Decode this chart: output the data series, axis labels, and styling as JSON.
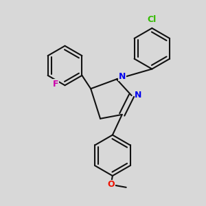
{
  "bg": "#d8d8d8",
  "bond_color": "#111111",
  "N_color": "#0000ee",
  "F_color": "#cc00aa",
  "Cl_color": "#33bb00",
  "O_color": "#ee1100",
  "lw": 1.5,
  "dbo": 0.028,
  "figsize": [
    3.0,
    3.0
  ],
  "dpi": 100,
  "xlim": [
    -1.3,
    1.5
  ],
  "ylim": [
    -1.55,
    1.45
  ]
}
